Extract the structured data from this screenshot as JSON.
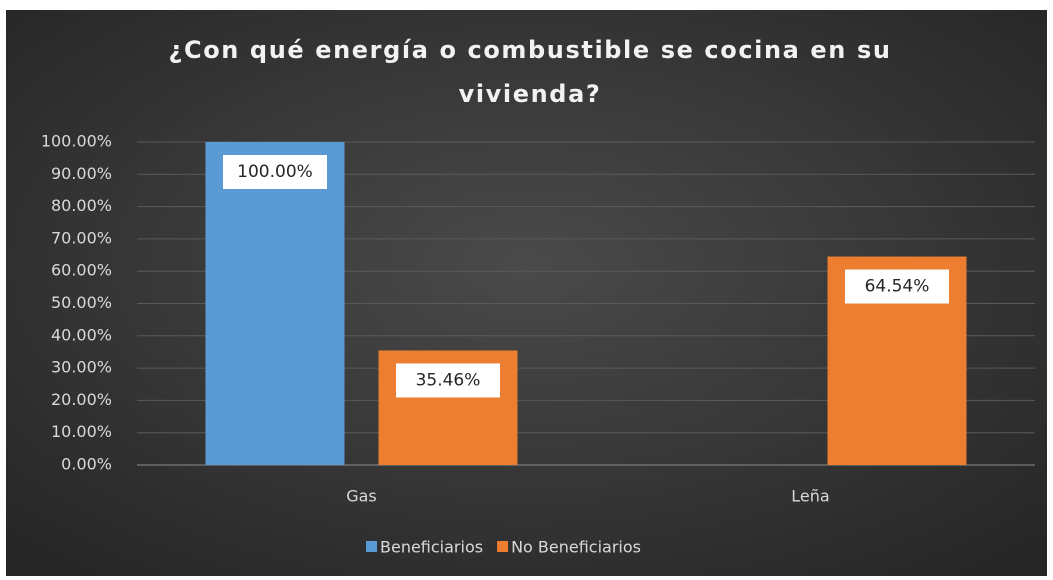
{
  "chart_data": {
    "type": "bar",
    "title": "¿Con qué energía o combustible se cocina en su vivienda?",
    "categories": [
      "Gas",
      "Leña"
    ],
    "series": [
      {
        "name": "Beneficiarios",
        "color": "#5b9bd5",
        "values": [
          100,
          null
        ],
        "value_labels": [
          "100.00%",
          null
        ]
      },
      {
        "name": "No Beneficiarios",
        "color": "#ed7d31",
        "values": [
          35.46,
          64.54
        ],
        "value_labels": [
          "35.46%",
          "64.54%"
        ]
      }
    ],
    "ylim": [
      0,
      100
    ],
    "yticks": [
      {
        "value": 0,
        "label": "0.00%"
      },
      {
        "value": 10,
        "label": "10.00%"
      },
      {
        "value": 20,
        "label": "20.00%"
      },
      {
        "value": 30,
        "label": "30.00%"
      },
      {
        "value": 40,
        "label": "40.00%"
      },
      {
        "value": 50,
        "label": "50.00%"
      },
      {
        "value": 60,
        "label": "60.00%"
      },
      {
        "value": 70,
        "label": "70.00%"
      },
      {
        "value": 80,
        "label": "80.00%"
      },
      {
        "value": 90,
        "label": "90.00%"
      },
      {
        "value": 100,
        "label": "100.00%"
      }
    ],
    "grid": true,
    "legend": "bottom"
  }
}
